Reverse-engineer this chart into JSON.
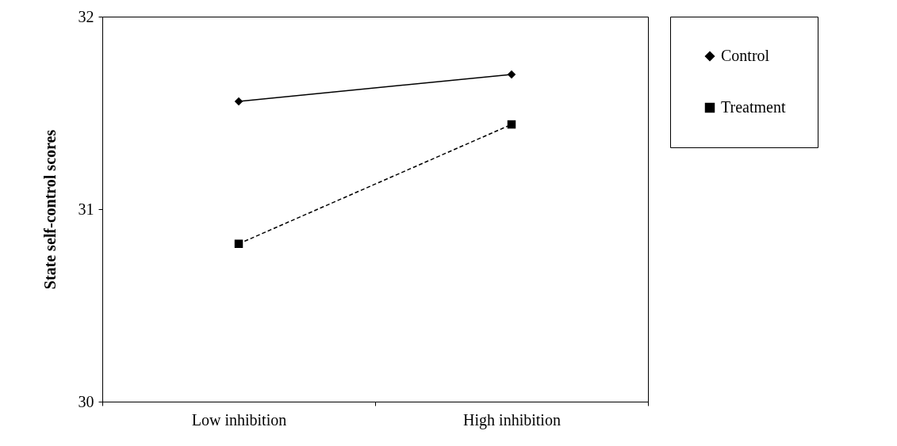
{
  "chart_data": {
    "type": "line",
    "ylabel": "State self-control scores",
    "categories": [
      "Low inhibition",
      "High inhibition"
    ],
    "series": [
      {
        "name": "Control",
        "color": "#000000",
        "values": [
          31.56,
          31.7
        ],
        "marker": "diamond",
        "line_style": "solid"
      },
      {
        "name": "Treatment",
        "color": "#000000",
        "values": [
          30.82,
          31.44
        ],
        "marker": "square",
        "line_style": "dashed"
      }
    ],
    "ylim": [
      30,
      32
    ],
    "yticks": [
      30,
      31,
      32
    ],
    "grid": false,
    "legend": "right"
  }
}
